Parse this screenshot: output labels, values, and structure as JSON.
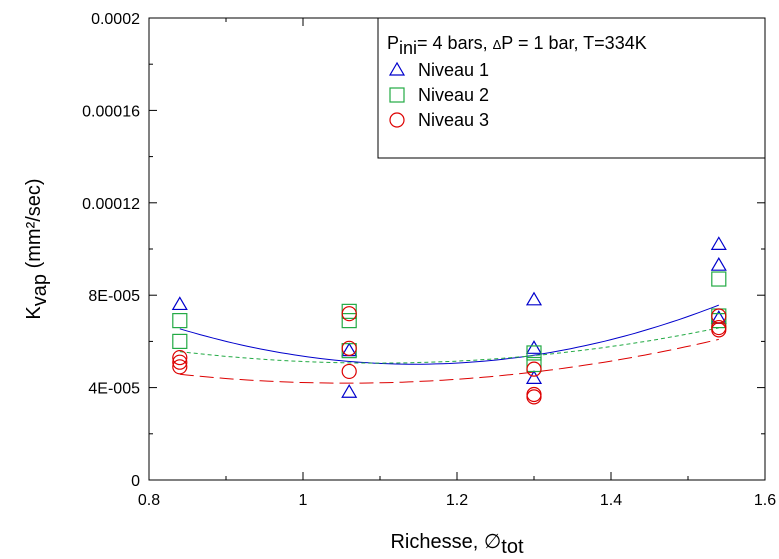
{
  "chart_data": {
    "type": "scatter",
    "title": "",
    "xlabel": {
      "main": "Richesse, ",
      "symbol": "∅",
      "sub": "tot"
    },
    "ylabel": {
      "main": "K",
      "sub": "vap",
      "unit": " (mm²/sec)"
    },
    "xlim": [
      0.8,
      1.6
    ],
    "ylim": [
      0,
      0.0002
    ],
    "x_ticks": [
      0.8,
      1.0,
      1.2,
      1.4,
      1.6
    ],
    "x_tick_labels": [
      "0.8",
      "1",
      "1.2",
      "1.4",
      "1.6"
    ],
    "y_ticks": [
      0,
      4e-05,
      8e-05,
      0.00012,
      0.00016,
      0.0002
    ],
    "y_tick_labels": [
      "0",
      "4E-005",
      "8E-005",
      "0.00012",
      "0.00016",
      "0.0002"
    ],
    "grid": false,
    "legend_position": "top-right",
    "legend_header": {
      "p": "P",
      "p_sub": "ini",
      "rest1": "= 4 bars, ",
      "delta": "Δ",
      "rest2": "P = 1 bar, T=334K"
    },
    "series": [
      {
        "name": "Niveau 1",
        "marker": "triangle",
        "color": "#0000cc",
        "line_style": "solid",
        "points": [
          [
            0.84,
            7.6e-05
          ],
          [
            1.06,
            5.6e-05
          ],
          [
            1.06,
            3.8e-05
          ],
          [
            1.3,
            7.8e-05
          ],
          [
            1.3,
            5.7e-05
          ],
          [
            1.3,
            4.4e-05
          ],
          [
            1.54,
            0.000102
          ],
          [
            1.54,
            9.3e-05
          ],
          [
            1.54,
            7e-05
          ]
        ],
        "fit_coefficients": [
          0.0002658,
          -0.0003766,
          0.0001644
        ]
      },
      {
        "name": "Niveau 2",
        "marker": "square",
        "color": "#22aa44",
        "line_style": "short-dash",
        "points": [
          [
            0.84,
            6.9e-05
          ],
          [
            0.84,
            6e-05
          ],
          [
            1.06,
            7.3e-05
          ],
          [
            1.06,
            6.9e-05
          ],
          [
            1.06,
            5.6e-05
          ],
          [
            1.3,
            5.5e-05
          ],
          [
            1.3,
            5e-05
          ],
          [
            1.54,
            8.7e-05
          ],
          [
            1.54,
            7.1e-05
          ],
          [
            1.54,
            6.9e-05
          ]
        ],
        "fit_coefficients": [
          0.0001425,
          -0.0001679,
          7.67e-05
        ]
      },
      {
        "name": "Niveau 3",
        "marker": "circle",
        "color": "#dd0000",
        "line_style": "long-dash",
        "points": [
          [
            0.84,
            5.3e-05
          ],
          [
            0.84,
            5.1e-05
          ],
          [
            0.84,
            4.9e-05
          ],
          [
            1.06,
            7.2e-05
          ],
          [
            1.06,
            5.7e-05
          ],
          [
            1.06,
            4.7e-05
          ],
          [
            1.3,
            4.8e-05
          ],
          [
            1.3,
            3.7e-05
          ],
          [
            1.3,
            3.6e-05
          ],
          [
            1.54,
            7.1e-05
          ],
          [
            1.54,
            6.6e-05
          ],
          [
            1.54,
            6.5e-05
          ]
        ],
        "fit_coefficients": [
          0.0001328,
          -0.0001719,
          8.13e-05
        ]
      }
    ]
  }
}
